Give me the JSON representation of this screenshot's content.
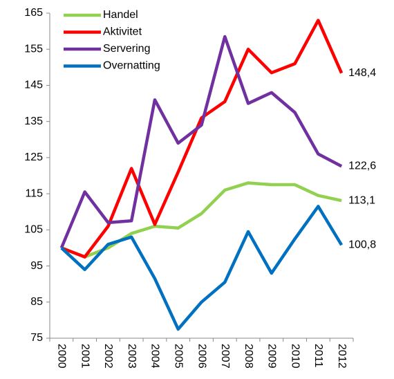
{
  "chart_data": {
    "type": "line",
    "categories": [
      "2000",
      "2001",
      "2002",
      "2003",
      "2004",
      "2005",
      "2006",
      "2007",
      "2008",
      "2009",
      "2010",
      "2011",
      "2012"
    ],
    "series": [
      {
        "name": "Handel",
        "color": "#92d050",
        "values": [
          100,
          97.5,
          100,
          104,
          106,
          105.5,
          109.5,
          116,
          118,
          117.5,
          117.5,
          114.5,
          113.1
        ],
        "value_labels": [
          null,
          null,
          null,
          null,
          null,
          null,
          null,
          null,
          null,
          null,
          null,
          null,
          "113,1"
        ]
      },
      {
        "name": "Aktivitet",
        "color": "#ff0000",
        "values": [
          100,
          97.5,
          106,
          122,
          106.5,
          121,
          136,
          140.5,
          155,
          148.5,
          151,
          163,
          148.4
        ],
        "value_labels": [
          null,
          null,
          null,
          null,
          null,
          null,
          null,
          null,
          null,
          null,
          null,
          null,
          "148,4"
        ]
      },
      {
        "name": "Servering",
        "color": "#7030a0",
        "values": [
          100,
          115.5,
          107,
          107.5,
          141,
          129,
          134,
          158.5,
          140,
          143,
          137.5,
          126,
          122.6
        ],
        "value_labels": [
          null,
          null,
          null,
          null,
          null,
          null,
          null,
          null,
          null,
          null,
          null,
          null,
          "122,6"
        ]
      },
      {
        "name": "Overnatting",
        "color": "#0070c0",
        "values": [
          100,
          94,
          101,
          103,
          91.5,
          77.5,
          85,
          90.5,
          104.5,
          93,
          102.5,
          111.5,
          100.8
        ],
        "value_labels": [
          null,
          null,
          null,
          null,
          null,
          null,
          null,
          null,
          null,
          null,
          null,
          null,
          "100,8"
        ]
      }
    ],
    "ylim": [
      75,
      165
    ],
    "yticks": [
      75,
      85,
      95,
      105,
      115,
      125,
      135,
      145,
      155,
      165
    ],
    "legend": "upper left"
  }
}
